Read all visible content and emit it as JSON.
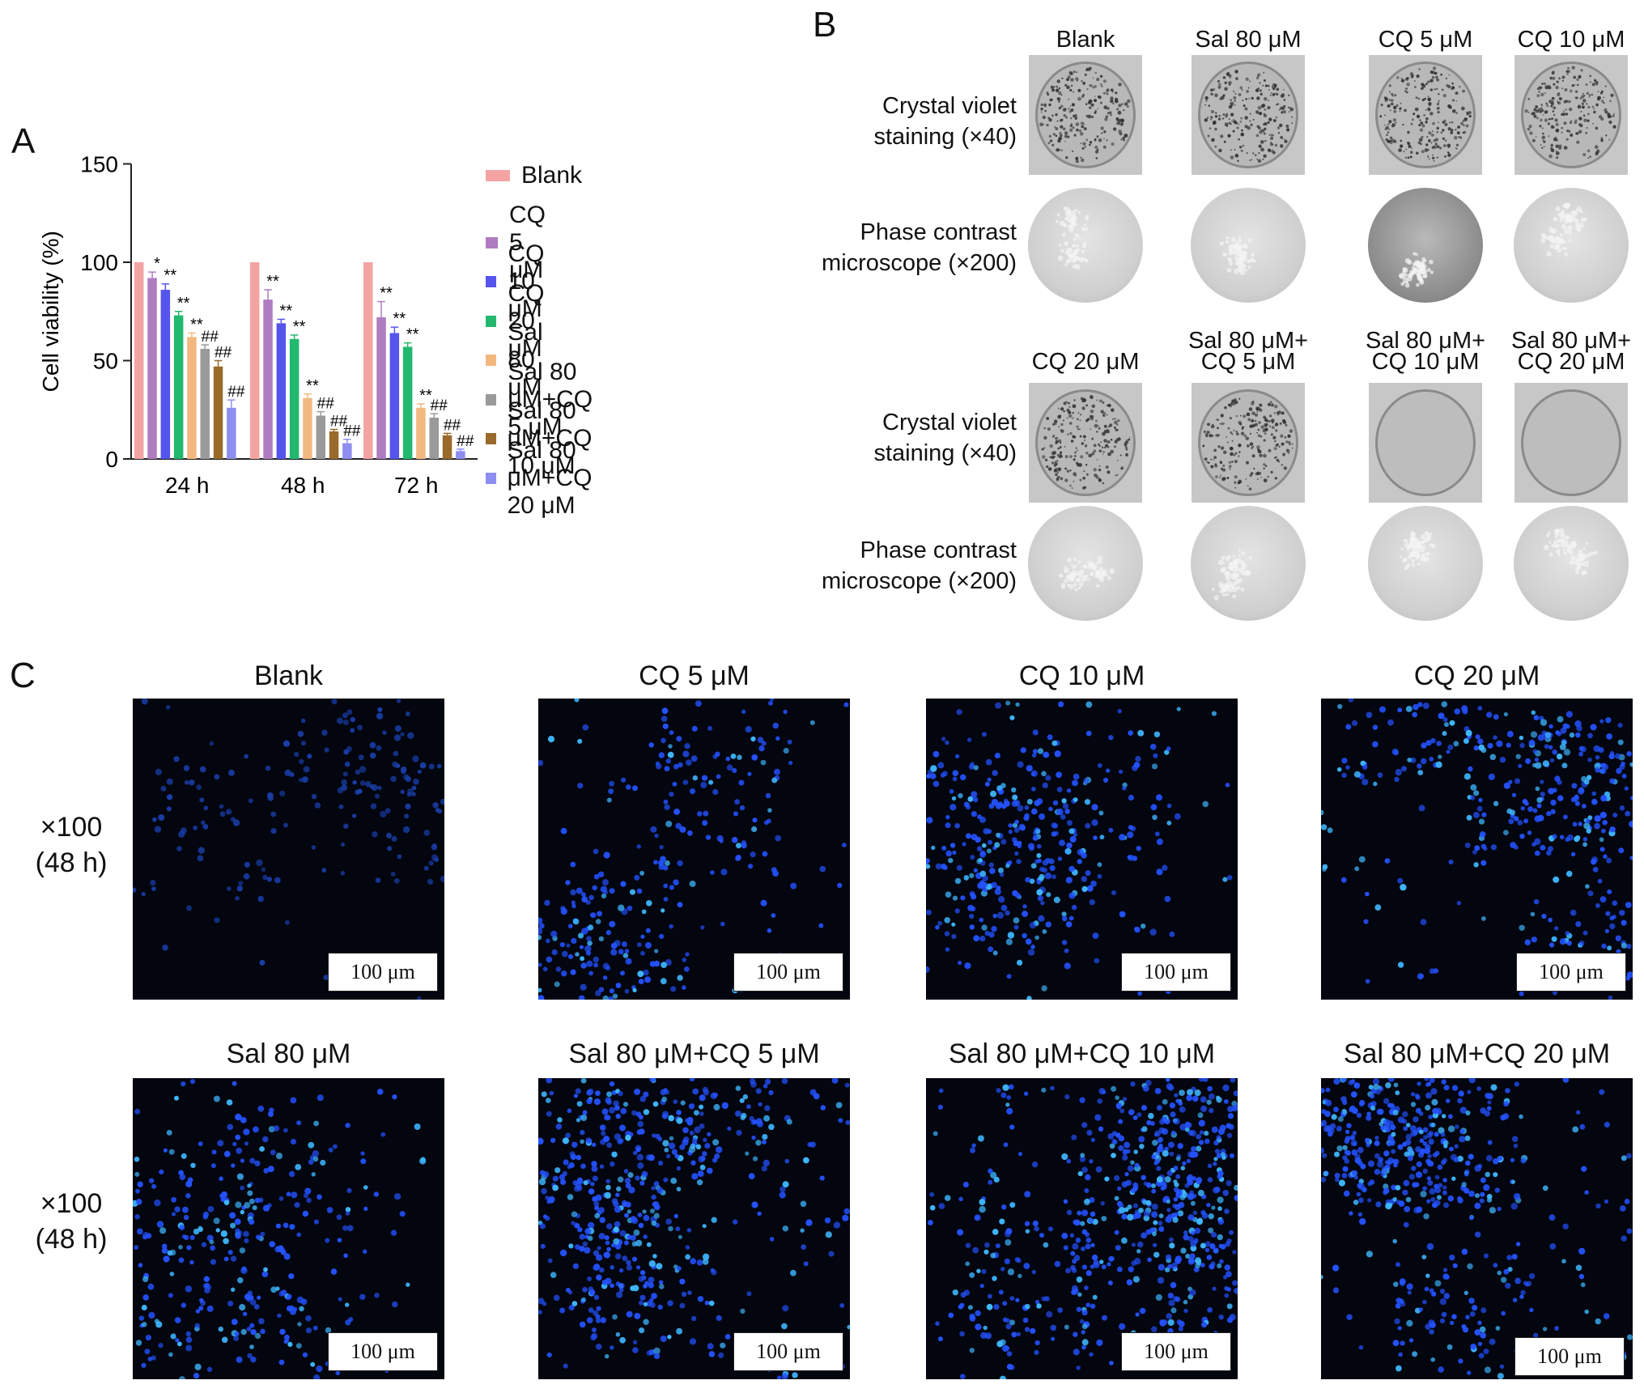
{
  "panels": {
    "A": "A",
    "B": "B",
    "C": "C"
  },
  "chart_data": {
    "type": "bar",
    "categories": [
      "24 h",
      "48 h",
      "72 h"
    ],
    "ylabel": "Cell viability (%)",
    "ylim": [
      0,
      150
    ],
    "yticks": [
      "0",
      "50",
      "100",
      "150"
    ],
    "legend_position": "right",
    "series": [
      {
        "name": "Blank",
        "color": "#f4a3a3",
        "values": [
          100,
          100,
          100
        ],
        "errors": [
          0,
          0,
          0
        ],
        "marks": [
          "",
          "",
          ""
        ]
      },
      {
        "name": "CQ 5 μM",
        "color": "#b07cc0",
        "values": [
          92,
          81,
          72
        ],
        "errors": [
          3,
          5,
          8
        ],
        "marks": [
          "*",
          "**",
          "**"
        ]
      },
      {
        "name": "CQ 10 μM",
        "color": "#5555ee",
        "values": [
          86,
          69,
          64
        ],
        "errors": [
          3,
          2,
          3
        ],
        "marks": [
          "**",
          "**",
          "**"
        ]
      },
      {
        "name": "CQ 20 μM",
        "color": "#22b86e",
        "values": [
          73,
          61,
          57
        ],
        "errors": [
          2,
          2,
          2
        ],
        "marks": [
          "**",
          "**",
          "**"
        ]
      },
      {
        "name": "Sal 80 μM",
        "color": "#f2b880",
        "values": [
          62,
          31,
          26
        ],
        "errors": [
          2,
          2,
          2
        ],
        "marks": [
          "**",
          "**",
          "**"
        ]
      },
      {
        "name": "Sal 80 μM+CQ 5 μM",
        "color": "#9a9a9a",
        "values": [
          56,
          22,
          21
        ],
        "errors": [
          2,
          2,
          2
        ],
        "marks": [
          "##",
          "##",
          "##"
        ]
      },
      {
        "name": "Sal 80 μM+CQ 10 μM",
        "color": "#9a6a2a",
        "values": [
          47,
          14,
          12
        ],
        "errors": [
          3,
          1,
          1
        ],
        "marks": [
          "##",
          "##",
          "##"
        ]
      },
      {
        "name": "Sal 80 μM+CQ 20 μM",
        "color": "#8e8ef0",
        "values": [
          26,
          8,
          4
        ],
        "errors": [
          4,
          2,
          1
        ],
        "marks": [
          "##",
          "##",
          "##"
        ]
      }
    ]
  },
  "panelB": {
    "row1_titles": [
      "Blank",
      "Sal 80 μM",
      "CQ 5 μM",
      "CQ 10 μM"
    ],
    "row2_titles": [
      {
        "line1": "CQ 20 μM",
        "line2": ""
      },
      {
        "line1": "Sal 80 μM+",
        "line2": "CQ 5 μM"
      },
      {
        "line1": "Sal 80 μM+",
        "line2": "CQ 10 μM"
      },
      {
        "line1": "Sal 80 μM+",
        "line2": "CQ 20 μM"
      }
    ],
    "cv_label_line1": "Crystal violet",
    "cv_label_line2": "staining (×40)",
    "pc_label_line1": "Phase contrast",
    "pc_label_line2": "microscope (×200)"
  },
  "panelC": {
    "row1_titles": [
      "Blank",
      "CQ 5 μM",
      "CQ 10 μM",
      "CQ 20 μM"
    ],
    "row2_titles": [
      "Sal 80 μM",
      "Sal 80 μM+CQ 5 μM",
      "Sal 80 μM+CQ 10 μM",
      "Sal 80 μM+CQ 20 μM"
    ],
    "mag_line1": "×100",
    "mag_line2": "(48 h)",
    "scale_bar": "100 μm",
    "density": [
      0.35,
      0.55,
      0.6,
      0.7,
      0.6,
      0.95,
      1.0,
      0.9
    ]
  }
}
